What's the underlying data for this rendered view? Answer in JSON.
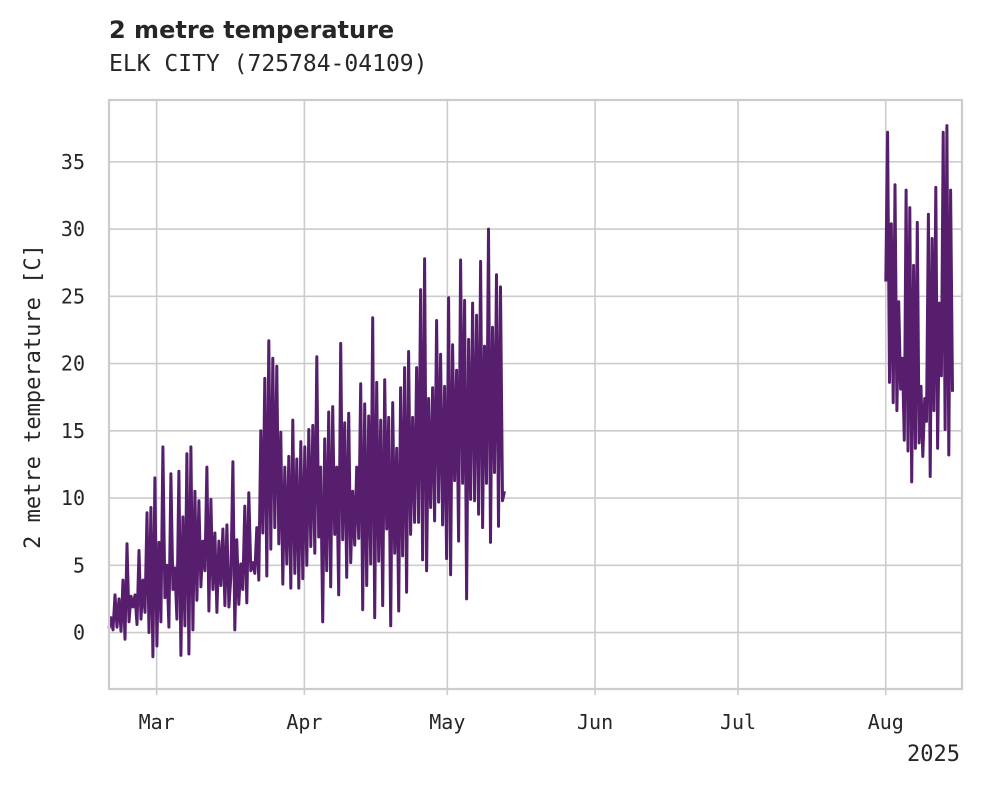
{
  "chart_data": {
    "type": "line",
    "title": "2 metre temperature",
    "subtitle": "ELK CITY (725784-04109)",
    "xlabel": "",
    "ylabel": "2 metre temperature [C]",
    "xlim": [
      "2025-02-19",
      "2025-08-17"
    ],
    "ylim": [
      -4.2,
      39.6
    ],
    "yticks": [
      0,
      5,
      10,
      15,
      20,
      25,
      30,
      35
    ],
    "xticks": [
      {
        "date": "2025-03-01",
        "label": "Mar"
      },
      {
        "date": "2025-04-01",
        "label": "Apr"
      },
      {
        "date": "2025-05-01",
        "label": "May"
      },
      {
        "date": "2025-06-01",
        "label": "Jun"
      },
      {
        "date": "2025-07-01",
        "label": "Jul"
      },
      {
        "date": "2025-08-01",
        "label": "Aug"
      }
    ],
    "year_label": "2025",
    "grid": true,
    "line_color": "#571e6e",
    "series": [
      {
        "segments": [
          {
            "start": "2025-02-19",
            "end": "2025-05-13",
            "values": [
              0.3,
              1.1,
              0.2,
              2.8,
              0.4,
              2.5,
              0.1,
              3.9,
              -0.5,
              6.6,
              0.8,
              2.7,
              1.9,
              2.8,
              0.6,
              6.1,
              1.0,
              3.9,
              1.5,
              8.9,
              0.0,
              9.3,
              -1.8,
              11.5,
              -1.0,
              6.7,
              0.8,
              13.8,
              2.6,
              5.0,
              0.4,
              11.8,
              3.2,
              4.8,
              1.0,
              12.0,
              -1.7,
              8.6,
              0.5,
              13.3,
              -1.6,
              13.8,
              0.2,
              10.5,
              2.4,
              9.8,
              3.4,
              6.8,
              4.6,
              12.3,
              1.6,
              9.9,
              3.2,
              7.4,
              1.5,
              6.8,
              3.5,
              7.7,
              2.0,
              8.0,
              1.9,
              4.2,
              12.7,
              0.2,
              6.9,
              2.1,
              5.1,
              3.2,
              9.4,
              2.2,
              10.4,
              4.6,
              5.2,
              4.4,
              7.8,
              3.9,
              15.0,
              7.4,
              18.9,
              4.2,
              21.7,
              6.2,
              20.4,
              7.8,
              19.8,
              6.6,
              14.9,
              3.6,
              12.3,
              5.1,
              13.1,
              3.3,
              15.8,
              4.4,
              12.9,
              3.3,
              14.2,
              4.0,
              13.8,
              5.0,
              15.1,
              6.4,
              15.4,
              5.9,
              20.5,
              7.1,
              12.3,
              0.8,
              14.4,
              4.6,
              16.4,
              3.4,
              16.8,
              7.3,
              12.3,
              2.8,
              21.5,
              6.9,
              15.6,
              4.1,
              16.3,
              5.2,
              10.5,
              6.5,
              12.3,
              7.0,
              18.5,
              1.7,
              17.0,
              3.5,
              16.1,
              5.1,
              23.4,
              1.1,
              18.6,
              5.3,
              15.8,
              2.0,
              18.8,
              7.7,
              16.0,
              0.5,
              17.1,
              5.9,
              13.7,
              1.6,
              18.2,
              5.7,
              19.7,
              3.0,
              20.9,
              7.3,
              16.0,
              8.2,
              19.7,
              8.2,
              25.5,
              5.4,
              27.8,
              4.6,
              17.4,
              9.3,
              18.2,
              8.3,
              23.2,
              9.7,
              20.7,
              8.0,
              18.3,
              5.5,
              24.9,
              4.3,
              21.4,
              11.3,
              19.5,
              6.8,
              27.7,
              11.1,
              24.7,
              2.5,
              21.8,
              9.9,
              24.5,
              9.8,
              23.6,
              8.8,
              27.6,
              7.8,
              21.3,
              11.1,
              30.0,
              6.7,
              22.7,
              11.9,
              26.6,
              7.9,
              25.7,
              9.8,
              10.5
            ]
          },
          {
            "start": "2025-08-01",
            "end": "2025-08-15",
            "values": [
              26.1,
              37.2,
              18.6,
              30.4,
              17.1,
              33.3,
              16.5,
              24.6,
              18.1,
              20.4,
              14.3,
              32.9,
              13.5,
              31.6,
              11.2,
              27.3,
              13.7,
              30.5,
              14.1,
              18.3,
              13.1,
              17.4,
              15.7,
              31.1,
              11.6,
              29.3,
              16.5,
              33.1,
              13.7,
              24.5,
              19.1,
              37.2,
              15.1,
              37.7,
              13.2,
              32.9,
              17.9
            ]
          }
        ]
      }
    ]
  }
}
